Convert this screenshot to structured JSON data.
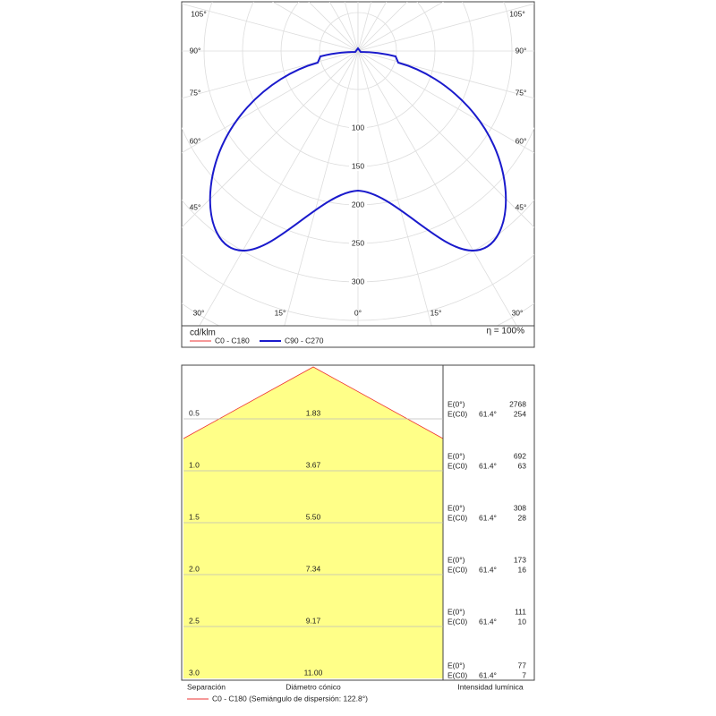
{
  "polar": {
    "angles_left": [
      "105°",
      "90°",
      "75°",
      "60°",
      "45°",
      "30°",
      "15°"
    ],
    "center_angle": "0°",
    "angles_right": [
      "105°",
      "90°",
      "75°",
      "60°",
      "45°",
      "30°",
      "15°"
    ],
    "rings": [
      "100",
      "150",
      "200",
      "250",
      "300"
    ],
    "unit": "cd/klm",
    "legend": [
      "C0 - C180",
      "C90 - C270"
    ],
    "efficiency": "η = 100%"
  },
  "cone": {
    "rows": [
      {
        "distance": "0.5",
        "diameter": "1.83",
        "e0_label": "E(0°)",
        "ec0_label": "E(C0)",
        "angle": "61.4°",
        "e0": "2768",
        "ec0": "254"
      },
      {
        "distance": "1.0",
        "diameter": "3.67",
        "e0_label": "E(0°)",
        "ec0_label": "E(C0)",
        "angle": "61.4°",
        "e0": "692",
        "ec0": "63"
      },
      {
        "distance": "1.5",
        "diameter": "5.50",
        "e0_label": "E(0°)",
        "ec0_label": "E(C0)",
        "angle": "61.4°",
        "e0": "308",
        "ec0": "28"
      },
      {
        "distance": "2.0",
        "diameter": "7.34",
        "e0_label": "E(0°)",
        "ec0_label": "E(C0)",
        "angle": "61.4°",
        "e0": "173",
        "ec0": "16"
      },
      {
        "distance": "2.5",
        "diameter": "9.17",
        "e0_label": "E(0°)",
        "ec0_label": "E(C0)",
        "angle": "61.4°",
        "e0": "111",
        "ec0": "10"
      },
      {
        "distance": "3.0",
        "diameter": "11.00",
        "e0_label": "E(0°)",
        "ec0_label": "E(C0)",
        "angle": "61.4°",
        "e0": "77",
        "ec0": "7"
      }
    ],
    "headers": [
      "Separación",
      "Diámetro cónico",
      "Intensidad lumínica"
    ],
    "legend": "C0 - C180 (Semiángulo de dispersión: 122.8°)"
  }
}
